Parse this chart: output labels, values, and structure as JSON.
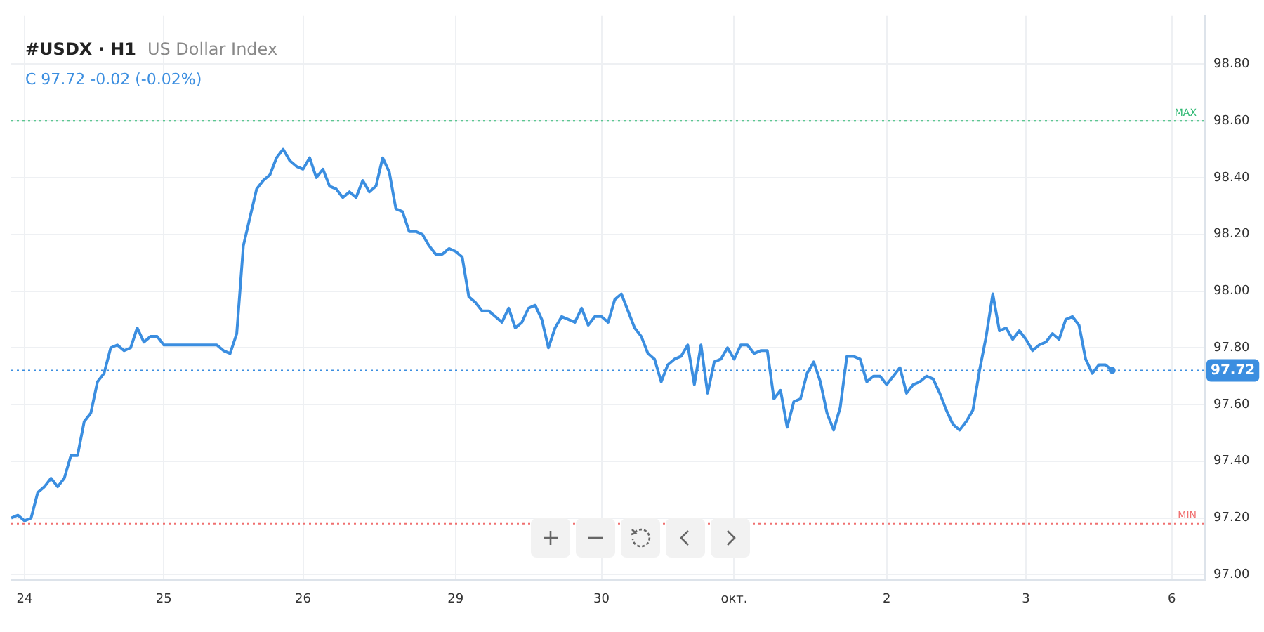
{
  "chart_data": {
    "type": "line",
    "title": "#USDX · H1",
    "subtitle": "US Dollar Index",
    "annotations": [
      "C 97.72 -0.02 (-0.02%)"
    ],
    "categories": [
      null,
      null,
      "24",
      null,
      null,
      null,
      null,
      null,
      null,
      null,
      null,
      null,
      null,
      null,
      null,
      null,
      null,
      null,
      null,
      null,
      null,
      null,
      null,
      "25",
      null,
      null,
      null,
      null,
      null,
      null,
      null,
      null,
      null,
      null,
      null,
      null,
      null,
      null,
      null,
      null,
      null,
      null,
      null,
      null,
      "26",
      null,
      null,
      null,
      null,
      null,
      null,
      null,
      null,
      null,
      null,
      null,
      null,
      null,
      null,
      null,
      null,
      null,
      null,
      null,
      null,
      null,
      null,
      "29",
      null,
      null,
      null,
      null,
      null,
      null,
      null,
      null,
      null,
      null,
      null,
      null,
      null,
      null,
      null,
      null,
      null,
      null,
      null,
      null,
      null,
      "30",
      null,
      null,
      null,
      null,
      null,
      null,
      null,
      null,
      null,
      null,
      null,
      null,
      null,
      null,
      null,
      null,
      null,
      null,
      null,
      "окт.",
      null,
      null,
      null,
      null,
      null,
      null,
      null,
      null,
      null,
      null,
      null,
      null,
      null,
      null,
      null,
      null,
      null,
      null,
      null,
      null,
      null,
      null,
      "2",
      null,
      null,
      null,
      null,
      null,
      null,
      null,
      null,
      null,
      null,
      null,
      null,
      null,
      null,
      null,
      null,
      null,
      null,
      null,
      null,
      "3",
      null,
      null,
      null,
      null,
      null,
      null,
      null,
      null,
      null,
      null,
      null,
      null,
      null,
      null,
      null,
      null,
      null,
      null,
      null,
      null,
      null,
      "6",
      null,
      null,
      null,
      null,
      null
    ],
    "series": [
      {
        "color": "#3b8ee0",
        "values": [
          97.2,
          97.21,
          97.19,
          97.2,
          97.29,
          97.31,
          97.34,
          97.31,
          97.34,
          97.42,
          97.42,
          97.54,
          97.57,
          97.68,
          97.71,
          97.8,
          97.81,
          97.79,
          97.8,
          97.87,
          97.82,
          97.84,
          97.84,
          97.81,
          97.81,
          97.81,
          97.81,
          97.81,
          97.81,
          97.81,
          97.81,
          97.81,
          97.79,
          97.78,
          97.85,
          98.16,
          98.26,
          98.36,
          98.39,
          98.41,
          98.47,
          98.5,
          98.46,
          98.44,
          98.43,
          98.47,
          98.4,
          98.43,
          98.37,
          98.36,
          98.33,
          98.35,
          98.33,
          98.39,
          98.35,
          98.37,
          98.47,
          98.42,
          98.29,
          98.28,
          98.21,
          98.21,
          98.2,
          98.16,
          98.13,
          98.13,
          98.15,
          98.14,
          98.12,
          97.98,
          97.96,
          97.93,
          97.93,
          97.91,
          97.89,
          97.94,
          97.87,
          97.89,
          97.94,
          97.95,
          97.9,
          97.8,
          97.87,
          97.91,
          97.9,
          97.89,
          97.94,
          97.88,
          97.91,
          97.91,
          97.89,
          97.97,
          97.99,
          97.93,
          97.87,
          97.84,
          97.78,
          97.76,
          97.68,
          97.74,
          97.76,
          97.77,
          97.81,
          97.67,
          97.81,
          97.64,
          97.75,
          97.76,
          97.8,
          97.76,
          97.81,
          97.81,
          97.78,
          97.79,
          97.79,
          97.62,
          97.65,
          97.52,
          97.61,
          97.62,
          97.71,
          97.75,
          97.68,
          97.57,
          97.51,
          97.59,
          97.77,
          97.77,
          97.76,
          97.68,
          97.7,
          97.7,
          97.67,
          97.7,
          97.73,
          97.64,
          97.67,
          97.68,
          97.7,
          97.69,
          97.64,
          97.58,
          97.53,
          97.51,
          97.54,
          97.58,
          97.72,
          97.84,
          97.99,
          97.86,
          97.87,
          97.83,
          97.86,
          97.83,
          97.79,
          97.81,
          97.82,
          97.85,
          97.83,
          97.9,
          97.91,
          97.88,
          97.76,
          97.71,
          97.74,
          97.74,
          97.72,
          null,
          null,
          null,
          null,
          null,
          null,
          null,
          null,
          null,
          null,
          null,
          null,
          null,
          null
        ]
      }
    ],
    "ylim": [
      96.98,
      98.97
    ],
    "yticks": [
      {
        "value": 97,
        "label": "97.00"
      },
      {
        "value": 97.2,
        "label": "97.20"
      },
      {
        "value": 97.4,
        "label": "97.40"
      },
      {
        "value": 97.6,
        "label": "97.60"
      },
      {
        "value": 97.8,
        "label": "97.80"
      },
      {
        "value": 98,
        "label": "98.00"
      },
      {
        "value": 98.2,
        "label": "98.20"
      },
      {
        "value": 98.4,
        "label": "98.40"
      },
      {
        "value": 98.6,
        "label": "98.60"
      },
      {
        "value": 98.8,
        "label": "98.80"
      }
    ],
    "ref_lines": [
      {
        "axis": "y",
        "value": 98.6,
        "label": "MAX",
        "color": "#2eb872",
        "line_style": "dotted"
      },
      {
        "axis": "y",
        "value": 97.18,
        "label": "MIN",
        "color": "#f07070",
        "line_style": "dotted"
      },
      {
        "axis": "y",
        "value": 97.72,
        "label": "97.72",
        "color": "#3b8ee0",
        "line_style": "dotted"
      }
    ],
    "grid": true,
    "legend": false,
    "marker": "none",
    "line_style": "solid"
  }
}
